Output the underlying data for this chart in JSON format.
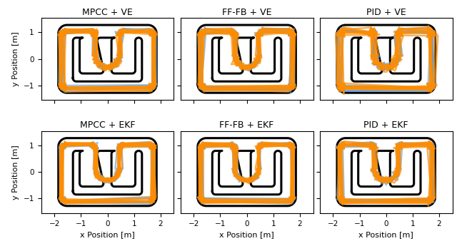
{
  "titles": [
    [
      "MPCC + VE",
      "FF-FB + VE",
      "PID + VE"
    ],
    [
      "MPCC + EKF",
      "FF-FB + EKF",
      "PID + EKF"
    ]
  ],
  "xlabel": "x Position [m]",
  "ylabel": "y Position [m]",
  "xlim": [
    -2.5,
    2.5
  ],
  "ylim": [
    -1.55,
    1.55
  ],
  "xticks": [
    -2,
    -1,
    0,
    1,
    2
  ],
  "yticks": [
    -1,
    0,
    1
  ],
  "track_color": "#000000",
  "track_lw": 2.2,
  "orange_color": "#FF8C00",
  "blue_color": "#5B9BD5",
  "gray_color": "#AAAAAA",
  "orange_lw": 3.5,
  "blue_lw": 3.0,
  "gray_lw": 1.5,
  "figsize": [
    6.4,
    3.52
  ],
  "dpi": 100
}
